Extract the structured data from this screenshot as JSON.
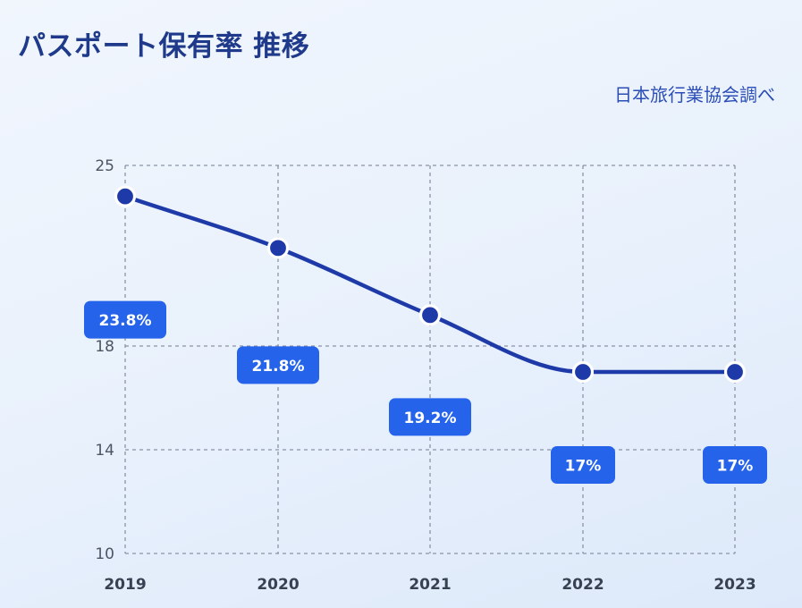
{
  "header": {
    "title": "パスポート保有率 推移",
    "source": "日本旅行業協会調べ"
  },
  "colors": {
    "line": "#1e3aa8",
    "label_bg": "#2563eb",
    "grid": "#8a94a6"
  },
  "chart_data": {
    "type": "line",
    "categories": [
      "2019",
      "2020",
      "2021",
      "2022",
      "2023"
    ],
    "series": [
      {
        "values": [
          23.8,
          21.8,
          19.2,
          17,
          17
        ]
      }
    ],
    "data_labels": [
      "23.8%",
      "21.8%",
      "19.2%",
      "17%",
      "17%"
    ],
    "y_ticks": [
      10,
      14,
      18,
      25
    ],
    "ylim": [
      10,
      25
    ],
    "grid": true,
    "title": "パスポート保有率 推移",
    "xlabel": "",
    "ylabel": ""
  }
}
